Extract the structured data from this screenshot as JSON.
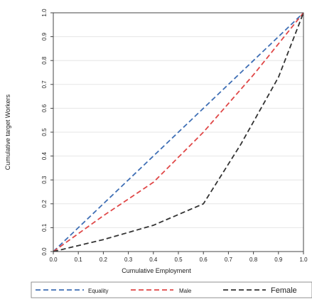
{
  "chart_data": {
    "type": "line",
    "title": "",
    "xlabel": "Cumulative Employment",
    "ylabel": "Cumulative target Workers",
    "xlim": [
      0,
      1
    ],
    "ylim": [
      0,
      1
    ],
    "x_ticks": [
      "0.0",
      "0.1",
      "0.2",
      "0.3",
      "0.4",
      "0.5",
      "0.6",
      "0.7",
      "0.8",
      "0.9",
      "1.0"
    ],
    "y_ticks": [
      "0.0",
      "0.1",
      "0.2",
      "0.3",
      "0.4",
      "0.5",
      "0.6",
      "0.7",
      "0.8",
      "0.9",
      "1.0"
    ],
    "grid": true,
    "legend_placement": "bottom",
    "series": [
      {
        "name": "Equality",
        "color": "#3f6fb5",
        "dash": "dashed",
        "x": [
          0,
          1
        ],
        "y": [
          0,
          1
        ]
      },
      {
        "name": "Male",
        "color": "#e04848",
        "dash": "dashed",
        "x": [
          0,
          0.2,
          0.4,
          0.6,
          0.8,
          1.0
        ],
        "y": [
          0,
          0.15,
          0.29,
          0.5,
          0.74,
          1.0
        ]
      },
      {
        "name": "Female",
        "color": "#333333",
        "dash": "dashed",
        "x": [
          0,
          0.2,
          0.4,
          0.6,
          0.75,
          0.9,
          1.0
        ],
        "y": [
          0,
          0.05,
          0.11,
          0.2,
          0.45,
          0.73,
          1.0
        ]
      }
    ]
  }
}
